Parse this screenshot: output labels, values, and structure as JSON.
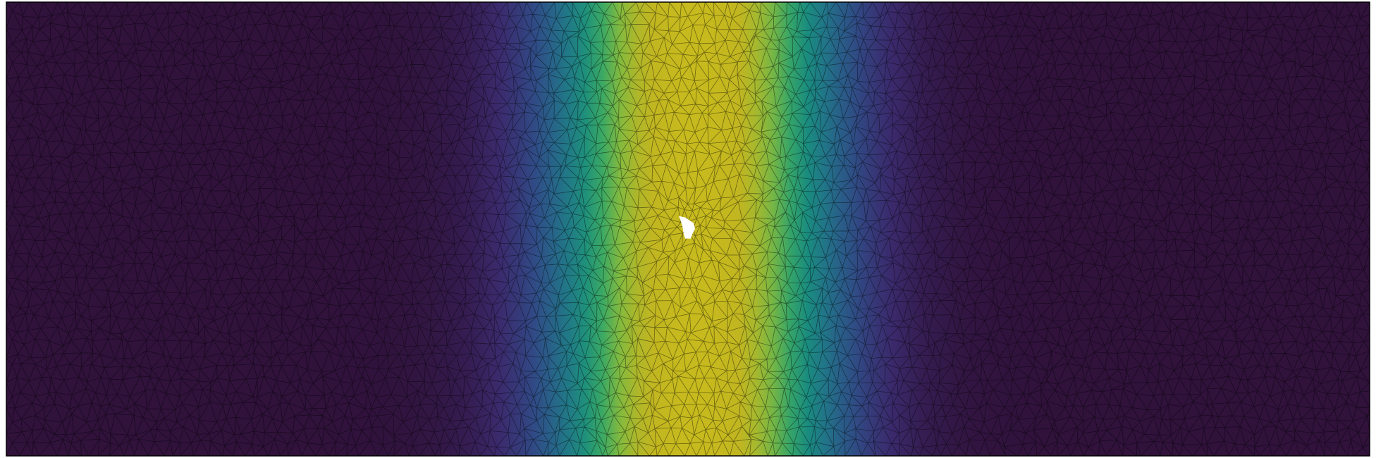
{
  "figure": {
    "description_type": "finite-element triangular mesh field plot",
    "colormap": "viridis",
    "colormap_stops": [
      "#30123b",
      "#3b2b6e",
      "#2f4d87",
      "#23708a",
      "#1a8c7f",
      "#3aa864",
      "#8cbc3a",
      "#c0b522",
      "#c7ba1e"
    ],
    "background_color": "#ffffff",
    "mesh_edge_color": "#000000",
    "hole_color": "#ffffff",
    "frame_color": "#000000"
  },
  "chart_data": {
    "type": "heatmap",
    "field": {
      "kind": "gaussian-band",
      "peak_x_fraction": 0.505,
      "band_sigma_fraction": 0.07,
      "min_level": 0.0,
      "max_level": 1.0
    },
    "mesh": {
      "element": "triangle",
      "columns": 115,
      "rows": 36,
      "jitter": 0.35
    },
    "hole": {
      "present": true,
      "center_x_fraction": 0.5,
      "center_y_fraction": 0.49
    },
    "grid": false,
    "legend": "none"
  }
}
